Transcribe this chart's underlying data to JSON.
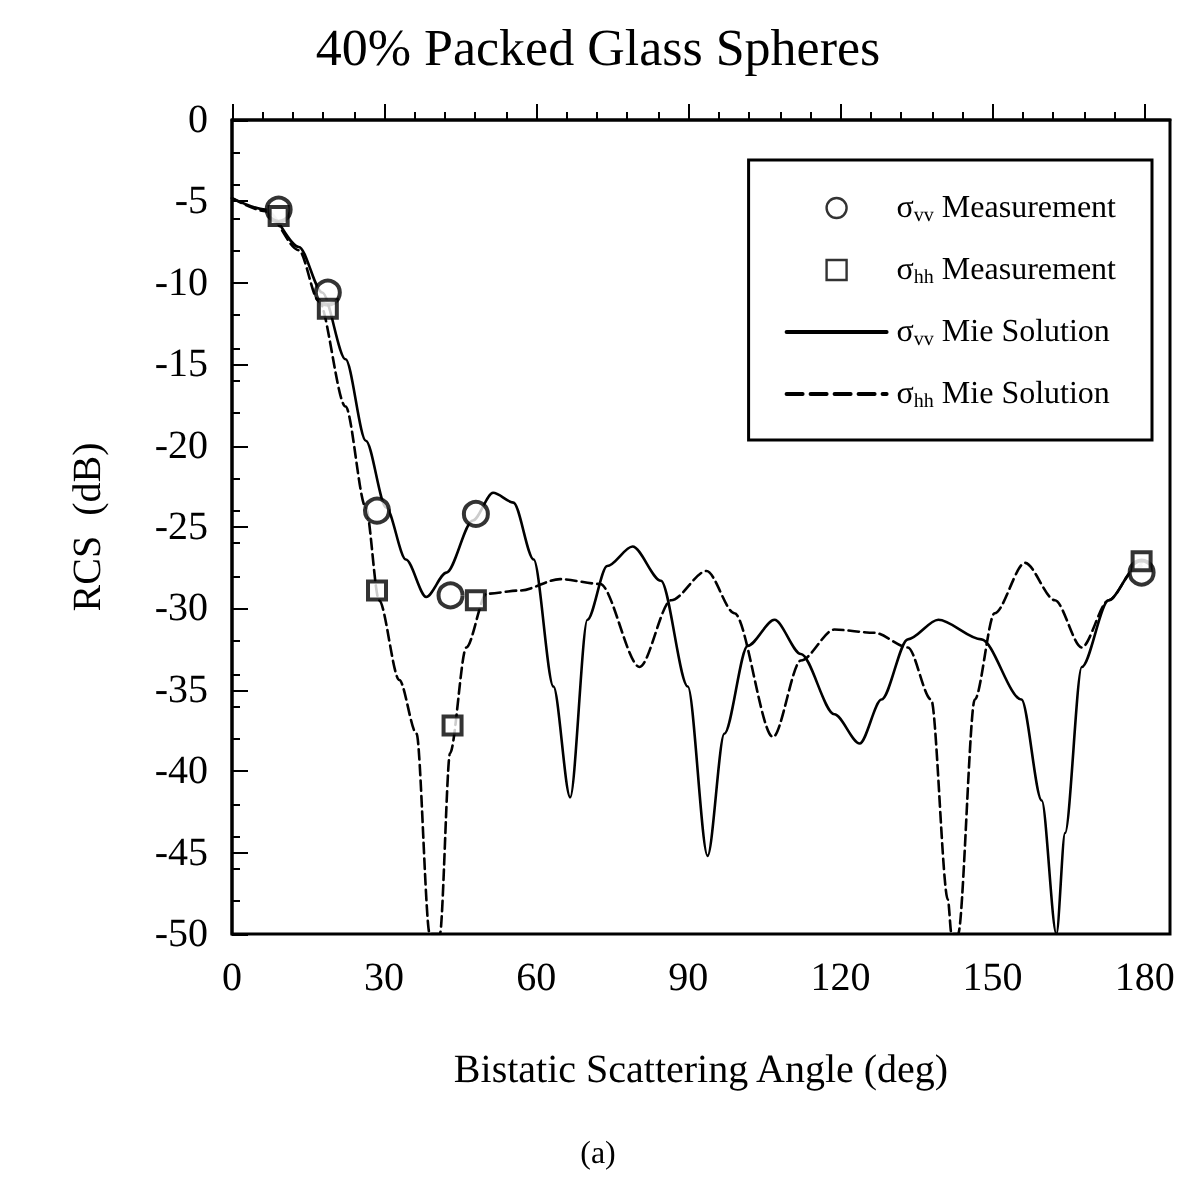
{
  "chart_data": {
    "type": "line",
    "title": "40% Packed Glass Spheres",
    "xlabel": "Bistatic Scattering Angle (deg)",
    "ylabel": "RCS  (dB)",
    "annotations": [
      "(a)"
    ],
    "xlim": [
      0,
      185
    ],
    "xticks": [
      0,
      30,
      60,
      90,
      120,
      150,
      180
    ],
    "ylim": [
      -50,
      0
    ],
    "yticks": [
      0,
      -5,
      -10,
      -15,
      -20,
      -25,
      -30,
      -35,
      -40,
      -45,
      -50
    ],
    "grid": false,
    "legend": "top right",
    "series": [
      {
        "name": "σ$_{vv}$ Measurement",
        "type": "scatter",
        "marker": "circle",
        "color": "#000000",
        "x": [
          9.2,
          18.9,
          28.6,
          43.1,
          48.1,
          179.4
        ],
        "values": [
          -5.5,
          -10.6,
          -24.0,
          -29.2,
          -24.2,
          -27.8
        ]
      },
      {
        "name": "σ$_{hh}$ Measurement",
        "type": "scatter",
        "marker": "square",
        "color": "#000000",
        "x": [
          9.2,
          18.9,
          28.6,
          43.5,
          48.1,
          179.4
        ],
        "values": [
          -5.9,
          -11.6,
          -28.9,
          -37.2,
          -29.5,
          -27.1
        ]
      },
      {
        "name": "σ$_{vv}$ Mie Solution",
        "marker": "none",
        "line_style": "solid",
        "color": "#000000",
        "x": [
          0,
          6.6,
          13.2,
          17.8,
          22.4,
          26.4,
          30.4,
          34.3,
          38.3,
          42.3,
          47.5,
          51.5,
          55.5,
          59.5,
          63.4,
          66.7,
          70.1,
          74,
          79,
          84.6,
          89.9,
          93.8,
          97.1,
          101.7,
          107,
          112.2,
          118.8,
          123.8,
          128.1,
          133.3,
          139.3,
          147.8,
          155.7,
          159.7,
          162.6,
          164.3,
          167.6,
          172.9,
          178.1,
          179.4
        ],
        "values": [
          -4.8,
          -5.5,
          -7.8,
          -10.6,
          -14.7,
          -19.7,
          -23.8,
          -27.0,
          -29.3,
          -27.8,
          -24.6,
          -22.9,
          -23.5,
          -27.0,
          -34.8,
          -41.6,
          -30.7,
          -27.4,
          -26.2,
          -28.3,
          -34.8,
          -45.2,
          -37.7,
          -32.3,
          -30.7,
          -32.8,
          -36.5,
          -38.3,
          -35.6,
          -31.9,
          -30.7,
          -31.9,
          -35.6,
          -41.8,
          -50,
          -43.8,
          -33.6,
          -29.5,
          -27.6,
          -27.4
        ]
      },
      {
        "name": "σ$_{hh}$ Mie Solution",
        "marker": "none",
        "line_style": "dashed",
        "color": "#000000",
        "x": [
          0,
          6.6,
          13.2,
          17.1,
          22.4,
          26.4,
          29,
          33,
          36.4,
          39,
          41,
          43,
          46.2,
          50.2,
          56.8,
          64.7,
          72.6,
          80.4,
          86.6,
          93.6,
          99.1,
          106.7,
          112.2,
          118.8,
          126.7,
          133.3,
          137.9,
          141.2,
          141.9,
          143.2,
          146.5,
          150.4,
          156.4,
          162.3,
          167.6,
          172.9,
          178.1,
          179.4
        ],
        "values": [
          -4.8,
          -5.6,
          -8.0,
          -11.1,
          -17.6,
          -23.8,
          -29.5,
          -34.4,
          -37.7,
          -50,
          -50,
          -38.9,
          -32.4,
          -29.1,
          -28.9,
          -28.2,
          -28.5,
          -33.6,
          -29.5,
          -27.7,
          -30.3,
          -37.9,
          -33.2,
          -31.3,
          -31.5,
          -32.4,
          -35.6,
          -47.9,
          -50,
          -50,
          -35.6,
          -30.3,
          -27.2,
          -29.5,
          -32.4,
          -29.5,
          -27.6,
          -27.2
        ]
      }
    ]
  }
}
